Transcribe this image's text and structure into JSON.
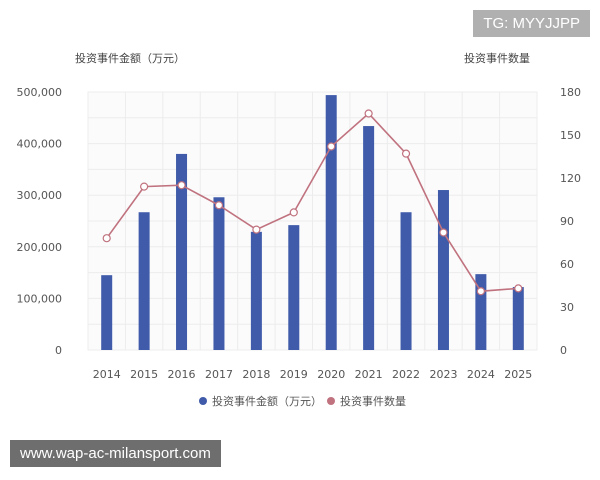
{
  "overlay": {
    "tg": "TG: MYYJJPP",
    "url": "www.wap-ac-milansport.com"
  },
  "chart_data": {
    "type": "bar+line",
    "categories": [
      "2014",
      "2015",
      "2016",
      "2017",
      "2018",
      "2019",
      "2020",
      "2021",
      "2022",
      "2023",
      "2024",
      "2025"
    ],
    "y_left": {
      "label": "投资事件金额（万元）",
      "range": [
        0,
        500000
      ],
      "ticks": [
        "0",
        "100,000",
        "200,000",
        "300,000",
        "400,000",
        "500,000"
      ]
    },
    "y_right": {
      "label": "投资事件数量",
      "range": [
        0,
        180
      ],
      "ticks": [
        "0",
        "30",
        "60",
        "90",
        "120",
        "150",
        "180"
      ]
    },
    "grid": true,
    "legend_position": "bottom",
    "series": [
      {
        "name": "投资事件金额（万元）",
        "kind": "bar",
        "axis": "left",
        "color": "#3f5ba9",
        "values": [
          145000,
          267000,
          380000,
          296000,
          229000,
          242000,
          494000,
          434000,
          267000,
          310000,
          147000,
          122000
        ]
      },
      {
        "name": "投资事件数量",
        "kind": "line",
        "axis": "right",
        "color": "#c0737f",
        "values": [
          78,
          114,
          115,
          101,
          84,
          96,
          142,
          165,
          137,
          82,
          41,
          43
        ]
      }
    ]
  }
}
